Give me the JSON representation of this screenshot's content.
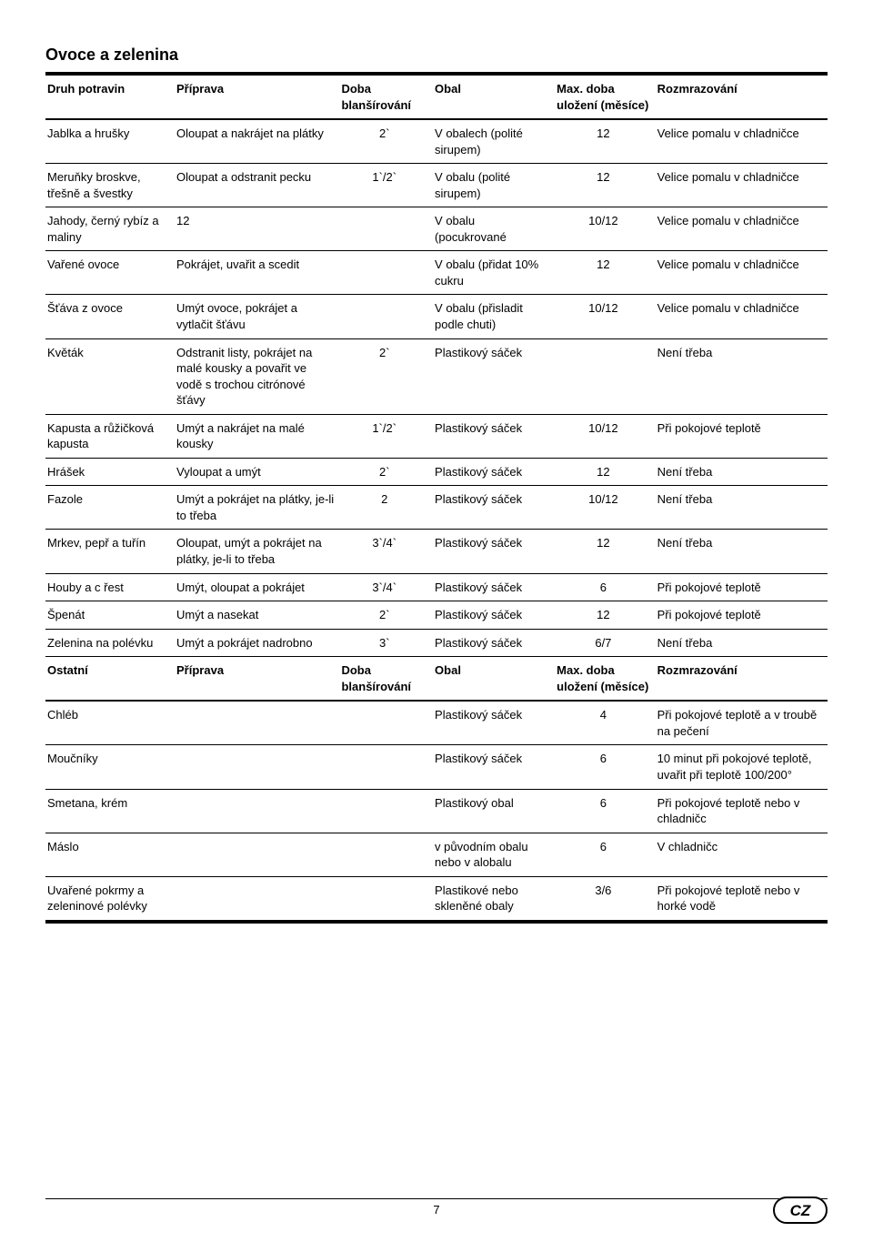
{
  "section_title": "Ovoce a zelenina",
  "table1": {
    "headers": [
      "Druh potravin",
      "Příprava",
      "Doba blanšírování",
      "Obal",
      "Max. doba uložení (měsíce)",
      "Rozmrazování"
    ],
    "rows": [
      [
        "Jablka a hrušky",
        "Oloupat a nakrájet na plátky",
        "2`",
        "V obalech (polité sirupem)",
        "12",
        "Velice pomalu v chladničce"
      ],
      [
        "Meruňky broskve, třešně a švestky",
        "Oloupat a odstranit pecku",
        "1`/2`",
        "V obalu (polité sirupem)",
        "12",
        "Velice pomalu v chladničce"
      ],
      [
        "Jahody, černý rybíz a maliny",
        "12",
        "",
        "V obalu (pocukrované",
        "10/12",
        "Velice pomalu v chladničce"
      ],
      [
        "Vařené ovoce",
        "Pokrájet, uvařit a scedit",
        "",
        "V obalu (přidat 10% cukru",
        "12",
        "Velice pomalu v chladničce"
      ],
      [
        "Šťáva z ovoce",
        "Umýt ovoce, pokrájet a vytlačit šťávu",
        "",
        "V obalu (přisladit podle chuti)",
        "10/12",
        "Velice pomalu v chladničce"
      ],
      [
        "Květák",
        "Odstranit listy, pokrájet na malé kousky a povařit ve vodě s trochou citrónové šťávy",
        "2`",
        "Plastikový sáček",
        "",
        "Není třeba"
      ],
      [
        "Kapusta a růžičková kapusta",
        "Umýt a nakrájet na malé kousky",
        "1`/2`",
        "Plastikový sáček",
        "10/12",
        "Při pokojové teplotě"
      ],
      [
        "Hrášek",
        "Vyloupat a umýt",
        "2`",
        "Plastikový sáček",
        "12",
        "Není třeba"
      ],
      [
        "Fazole",
        "Umýt a pokrájet na plátky, je-li to třeba",
        "2",
        "Plastikový sáček",
        "10/12",
        "Není třeba"
      ],
      [
        "Mrkev, pepř a tuřín",
        "Oloupat, umýt a pokrájet na plátky, je-li to třeba",
        "3`/4`",
        "Plastikový sáček",
        "12",
        "Není třeba"
      ],
      [
        "Houby a c řest",
        "Umýt, oloupat a pokrájet",
        "3`/4`",
        "Plastikový sáček",
        "6",
        "Při pokojové teplotě"
      ],
      [
        "Špenát",
        "Umýt a nasekat",
        "2`",
        "Plastikový sáček",
        "12",
        "Při pokojové teplotě"
      ],
      [
        "Zelenina na polévku",
        "Umýt a pokrájet nadrobno",
        "3`",
        "Plastikový sáček",
        "6/7",
        "Není třeba"
      ]
    ]
  },
  "table2": {
    "headers": [
      "Ostatní",
      "Příprava",
      "Doba blanšírování",
      "Obal",
      "Max. doba uložení (měsíce)",
      "Rozmrazování"
    ],
    "rows": [
      [
        "Chléb",
        "",
        "",
        "Plastikový sáček",
        "4",
        "Při pokojové teplotě a v troubě na pečení"
      ],
      [
        "Moučníky",
        "",
        "",
        "Plastikový sáček",
        "6",
        "10 minut při pokojové teplotě, uvařit při teplotě 100/200°"
      ],
      [
        "Smetana, krém",
        "",
        "",
        "Plastikový obal",
        "6",
        "Při pokojové teplotě nebo v chladničc"
      ],
      [
        "Máslo",
        "",
        "",
        "v původním obalu nebo v alobalu",
        "6",
        "V chladničc"
      ],
      [
        "Uvařené pokrmy a zeleninové polévky",
        "",
        "",
        "Plastikové nebo skleněné obaly",
        "3/6",
        "Při pokojové teplotě nebo v horké vodě"
      ]
    ]
  },
  "page_number": "7",
  "badge": "CZ"
}
